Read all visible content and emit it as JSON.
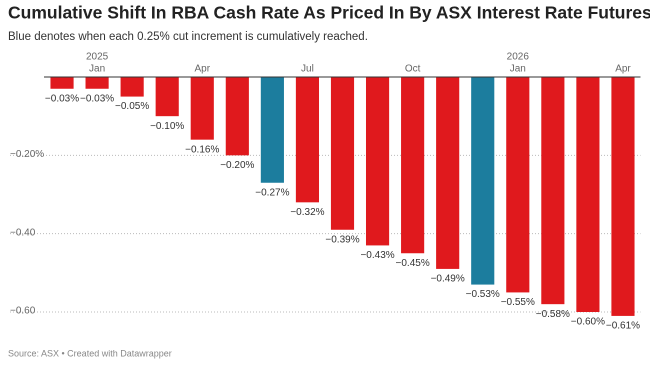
{
  "chart_data": {
    "type": "bar",
    "title": "Cumulative Shift In RBA Cash Rate As Priced In By ASX Interest Rate Futures",
    "subtitle": "Blue denotes when each 0.25% cut increment is cumulatively reached.",
    "source": "Source: ASX • Created with Datawrapper",
    "categories": [
      null,
      "Jan",
      null,
      null,
      "Apr",
      null,
      null,
      "Jul",
      null,
      null,
      "Oct",
      null,
      null,
      "Jan",
      null,
      null,
      "Apr"
    ],
    "category_years": [
      null,
      "2025",
      null,
      null,
      null,
      null,
      null,
      null,
      null,
      null,
      null,
      null,
      null,
      "2026",
      null,
      null,
      null
    ],
    "values": [
      -0.03,
      -0.03,
      -0.05,
      -0.1,
      -0.16,
      -0.2,
      -0.27,
      -0.32,
      -0.39,
      -0.43,
      -0.45,
      -0.49,
      -0.53,
      -0.55,
      -0.58,
      -0.6,
      -0.61
    ],
    "value_labels": [
      "−0.03%",
      "−0.03%",
      "−0.05%",
      "−0.10%",
      "−0.16%",
      "−0.20%",
      "−0.27%",
      "−0.32%",
      "−0.39%",
      "−0.43%",
      "−0.45%",
      "−0.49%",
      "−0.53%",
      "−0.55%",
      "−0.58%",
      "−0.60%",
      "−0.61%"
    ],
    "colors": [
      "#e0191d",
      "#e0191d",
      "#e0191d",
      "#e0191d",
      "#e0191d",
      "#e0191d",
      "#1c7d9e",
      "#e0191d",
      "#e0191d",
      "#e0191d",
      "#e0191d",
      "#e0191d",
      "#1c7d9e",
      "#e0191d",
      "#e0191d",
      "#e0191d",
      "#e0191d"
    ],
    "ylim": [
      -0.6,
      0
    ],
    "yticks": [
      {
        "value": -0.2,
        "label": "−0.20%"
      },
      {
        "value": -0.4,
        "label": "−0.40"
      },
      {
        "value": -0.6,
        "label": "−0.60"
      }
    ],
    "grid": true
  }
}
